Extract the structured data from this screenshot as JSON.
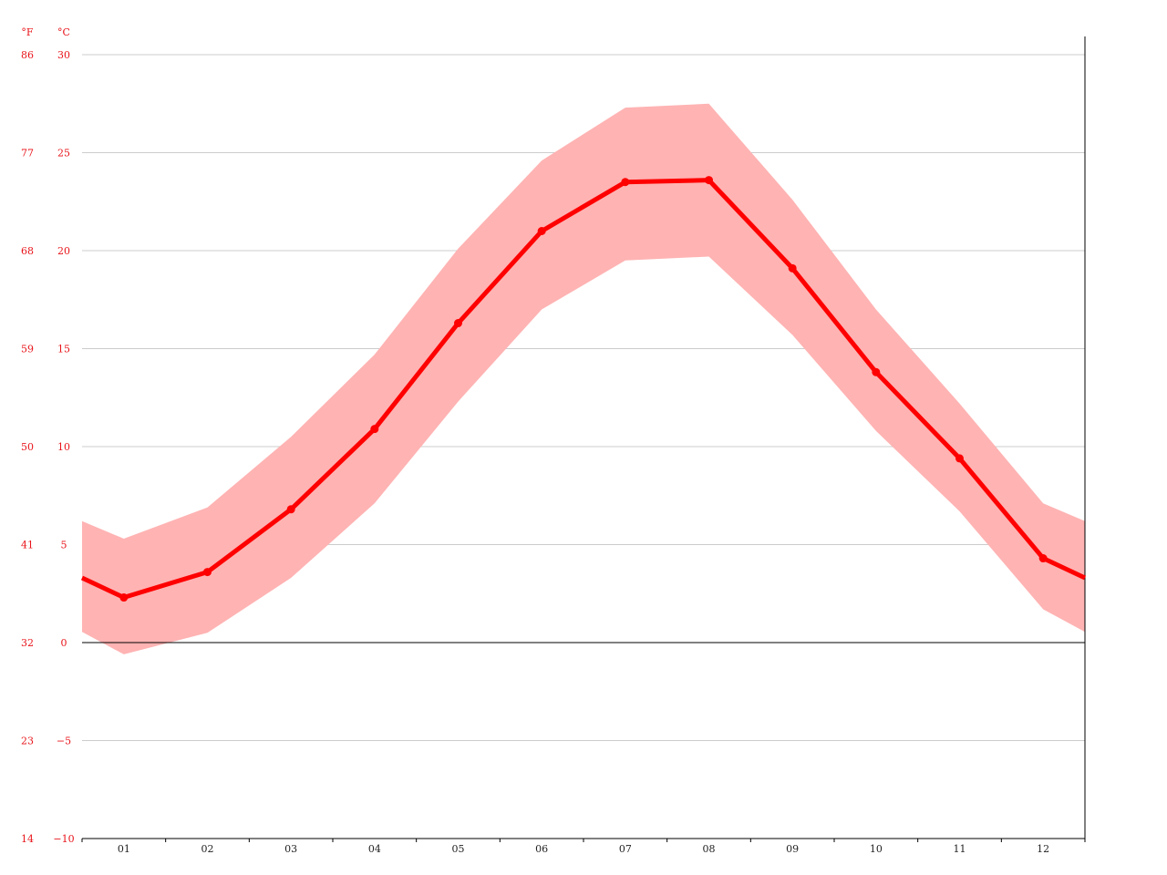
{
  "chart_data": {
    "type": "line",
    "title": "",
    "xlabel": "",
    "ylabel": "",
    "units": {
      "fahrenheit": "°F",
      "celsius": "°C"
    },
    "categories": [
      "01",
      "02",
      "03",
      "04",
      "05",
      "06",
      "07",
      "08",
      "09",
      "10",
      "11",
      "12"
    ],
    "ylim": [
      -10,
      30
    ],
    "y_ticks_c": [
      "30",
      "25",
      "20",
      "15",
      "10",
      "5",
      "0",
      "−5",
      "−10"
    ],
    "y_ticks_f": [
      "86",
      "77",
      "68",
      "59",
      "50",
      "41",
      "32",
      "23",
      "14"
    ],
    "y_tick_values": [
      30,
      25,
      20,
      15,
      10,
      5,
      0,
      -5,
      -10
    ],
    "grid": true,
    "series": [
      {
        "role": "average",
        "values": [
          2.3,
          3.6,
          6.8,
          10.9,
          16.3,
          21.0,
          23.5,
          23.6,
          19.1,
          13.8,
          9.4,
          4.3
        ]
      },
      {
        "role": "max",
        "values": [
          5.3,
          6.9,
          10.5,
          14.7,
          20.1,
          24.6,
          27.3,
          27.5,
          22.6,
          17.0,
          12.2,
          7.1
        ]
      },
      {
        "role": "min",
        "values": [
          -0.6,
          0.5,
          3.3,
          7.1,
          12.3,
          17.0,
          19.5,
          19.7,
          15.7,
          10.8,
          6.7,
          1.7
        ]
      }
    ],
    "colors": {
      "line": "#ff0000",
      "band": "#ffb3b3",
      "grid": "#cccccc",
      "zero_line": "#000000",
      "axis_labels": "#e8141a"
    }
  }
}
